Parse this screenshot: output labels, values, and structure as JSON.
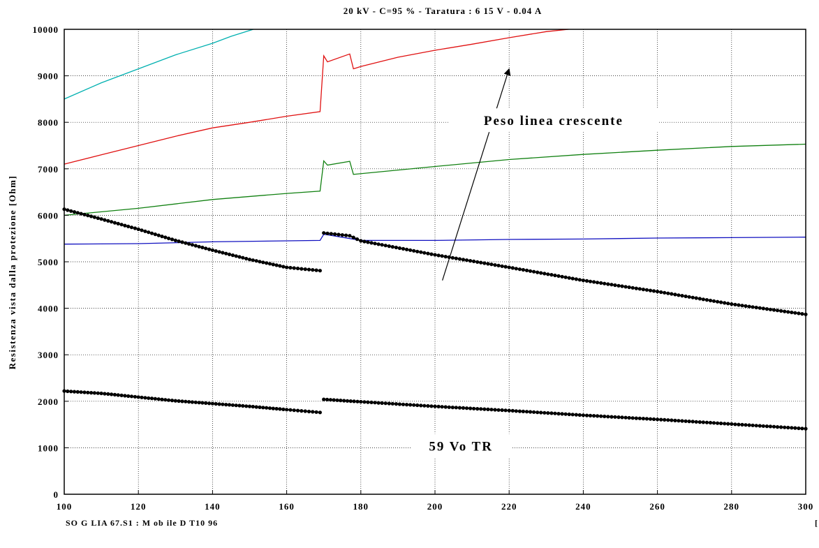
{
  "footer": {
    "left": "SO G LIA 67.S1 : M ob ile D T10 96",
    "right": "["
  },
  "chart_data": {
    "type": "line",
    "title": "20 kV - C=95 % - Taratura : 6 15 V - 0.04 A",
    "xlabel": "",
    "ylabel": "Resistenza vista dalla protezione [Ohm]",
    "xlim": [
      100,
      300
    ],
    "ylim": [
      0,
      10000
    ],
    "xticks": [
      100,
      120,
      140,
      160,
      180,
      200,
      220,
      240,
      260,
      280,
      300
    ],
    "yticks": [
      0,
      1000,
      2000,
      3000,
      4000,
      5000,
      6000,
      7000,
      8000,
      9000,
      10000
    ],
    "grid": true,
    "annotations": [
      {
        "text": "Peso linea crescente",
        "x": 232,
        "y": 8000
      },
      {
        "text": "59 Vo TR",
        "x": 207,
        "y": 1000
      }
    ],
    "arrow": {
      "from": [
        202,
        4600
      ],
      "to": [
        220,
        9150
      ]
    },
    "series": [
      {
        "color": "#00b0b0",
        "x": [
          100,
          110,
          120,
          130,
          140,
          145,
          151
        ],
        "y": [
          8500,
          8850,
          9150,
          9450,
          9700,
          9850,
          10000
        ]
      },
      {
        "color": "#e01010",
        "x": [
          100,
          110,
          120,
          130,
          140,
          150,
          160,
          169,
          170,
          171,
          177,
          178,
          180,
          190,
          200,
          210,
          220,
          230,
          236
        ],
        "y": [
          7100,
          7300,
          7500,
          7700,
          7880,
          8000,
          8130,
          8230,
          9430,
          9300,
          9470,
          9150,
          9200,
          9400,
          9550,
          9680,
          9820,
          9950,
          10000
        ]
      },
      {
        "color": "#108010",
        "x": [
          100,
          120,
          140,
          160,
          169,
          170,
          171,
          177,
          178,
          200,
          220,
          240,
          260,
          280,
          300
        ],
        "y": [
          6000,
          6150,
          6340,
          6470,
          6520,
          7170,
          7080,
          7160,
          6880,
          7050,
          7200,
          7310,
          7400,
          7480,
          7530
        ]
      },
      {
        "color": "#1010c0",
        "x": [
          100,
          120,
          140,
          160,
          169,
          170,
          171,
          180,
          200,
          220,
          240,
          260,
          280,
          300
        ],
        "y": [
          5380,
          5390,
          5430,
          5450,
          5460,
          5590,
          5580,
          5460,
          5460,
          5480,
          5490,
          5510,
          5520,
          5530
        ]
      },
      {
        "color": "#000000",
        "markers": true,
        "x": [
          100,
          110,
          120,
          130,
          140,
          150,
          160,
          169
        ],
        "y": [
          6130,
          5920,
          5700,
          5460,
          5250,
          5050,
          4880,
          4810
        ]
      },
      {
        "color": "#000000",
        "markers": true,
        "x": [
          170,
          177,
          180,
          200,
          220,
          240,
          260,
          280,
          300
        ],
        "y": [
          5620,
          5560,
          5450,
          5150,
          4880,
          4600,
          4360,
          4090,
          3870
        ]
      },
      {
        "color": "#000000",
        "markers": true,
        "x": [
          100,
          110,
          120,
          130,
          140,
          150,
          160,
          169
        ],
        "y": [
          2220,
          2170,
          2090,
          2010,
          1950,
          1890,
          1820,
          1760
        ]
      },
      {
        "color": "#000000",
        "markers": true,
        "x": [
          170,
          180,
          200,
          220,
          240,
          260,
          280,
          300
        ],
        "y": [
          2040,
          1990,
          1890,
          1800,
          1700,
          1610,
          1510,
          1410
        ]
      }
    ]
  }
}
